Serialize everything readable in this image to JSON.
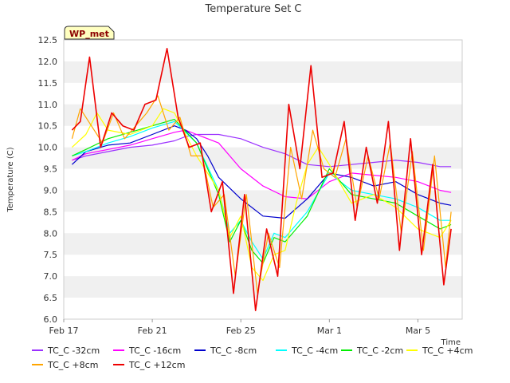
{
  "chart_data": {
    "type": "line",
    "title": "Temperature Set C",
    "xlabel": "Time",
    "ylabel": "Temperature (C)",
    "annotation": "WP_met",
    "ylim": [
      6.0,
      12.5
    ],
    "xlim": [
      "2021-02-17",
      "2021-03-07"
    ],
    "yticks": [
      "6.0",
      "6.5",
      "7.0",
      "7.5",
      "8.0",
      "8.5",
      "9.0",
      "9.5",
      "10.0",
      "10.5",
      "11.0",
      "11.5",
      "12.0",
      "12.5"
    ],
    "xticks": [
      {
        "label": "Feb 17",
        "date": "2021-02-17"
      },
      {
        "label": "Feb 21",
        "date": "2021-02-21"
      },
      {
        "label": "Feb 25",
        "date": "2021-02-25"
      },
      {
        "label": "Mar 1",
        "date": "2021-03-01"
      },
      {
        "label": "Mar 5",
        "date": "2021-03-05"
      }
    ],
    "grid": "horizontal bands",
    "legend_position": "bottom",
    "series": [
      {
        "name": "TC_C -32cm",
        "color": "#9b30ff",
        "x": [
          "2021-02-17 09:00",
          "2021-02-18 00:00",
          "2021-02-19 00:00",
          "2021-02-20 00:00",
          "2021-02-21 00:00",
          "2021-02-22 00:00",
          "2021-02-22 12:00",
          "2021-02-23 00:00",
          "2021-02-24 00:00",
          "2021-02-25 00:00",
          "2021-02-26 00:00",
          "2021-02-27 00:00",
          "2021-02-28 00:00",
          "2021-03-01 00:00",
          "2021-03-02 00:00",
          "2021-03-03 00:00",
          "2021-03-04 00:00",
          "2021-03-05 00:00",
          "2021-03-06 00:00",
          "2021-03-06 12:00"
        ],
        "y": [
          9.7,
          9.8,
          9.9,
          10.0,
          10.05,
          10.15,
          10.25,
          10.3,
          10.3,
          10.2,
          10.0,
          9.85,
          9.6,
          9.55,
          9.6,
          9.65,
          9.7,
          9.65,
          9.55,
          9.55
        ]
      },
      {
        "name": "TC_C -16cm",
        "color": "#ff00ff",
        "x": [
          "2021-02-17 09:00",
          "2021-02-18 00:00",
          "2021-02-19 00:00",
          "2021-02-20 00:00",
          "2021-02-21 00:00",
          "2021-02-22 00:00",
          "2021-02-22 12:00",
          "2021-02-23 00:00",
          "2021-02-24 00:00",
          "2021-02-25 00:00",
          "2021-02-26 00:00",
          "2021-02-27 00:00",
          "2021-02-28 00:00",
          "2021-03-01 00:00",
          "2021-03-02 00:00",
          "2021-03-03 00:00",
          "2021-03-04 00:00",
          "2021-03-05 00:00",
          "2021-03-06 00:00",
          "2021-03-06 12:00"
        ],
        "y": [
          9.7,
          9.85,
          9.95,
          10.05,
          10.2,
          10.35,
          10.4,
          10.3,
          10.1,
          9.5,
          9.1,
          8.85,
          8.8,
          9.2,
          9.4,
          9.35,
          9.3,
          9.2,
          9.0,
          8.95
        ]
      },
      {
        "name": "TC_C -8cm",
        "color": "#0000cd",
        "x": [
          "2021-02-17 09:00",
          "2021-02-18 00:00",
          "2021-02-19 00:00",
          "2021-02-20 00:00",
          "2021-02-21 00:00",
          "2021-02-22 00:00",
          "2021-02-22 12:00",
          "2021-02-23 00:00",
          "2021-02-23 12:00",
          "2021-02-24 00:00",
          "2021-02-25 00:00",
          "2021-02-26 00:00",
          "2021-02-27 00:00",
          "2021-02-28 00:00",
          "2021-03-01 00:00",
          "2021-03-02 00:00",
          "2021-03-03 00:00",
          "2021-03-04 00:00",
          "2021-03-05 00:00",
          "2021-03-06 00:00",
          "2021-03-06 12:00"
        ],
        "y": [
          9.6,
          9.9,
          10.05,
          10.1,
          10.3,
          10.5,
          10.4,
          10.2,
          9.8,
          9.3,
          8.8,
          8.4,
          8.35,
          8.8,
          9.4,
          9.3,
          9.1,
          9.2,
          8.9,
          8.7,
          8.65
        ]
      },
      {
        "name": "TC_C -4cm",
        "color": "#00ffff",
        "x": [
          "2021-02-17 09:00",
          "2021-02-18 00:00",
          "2021-02-19 00:00",
          "2021-02-20 00:00",
          "2021-02-21 00:00",
          "2021-02-22 00:00",
          "2021-02-23 00:00",
          "2021-02-24 00:00",
          "2021-02-24 12:00",
          "2021-02-25 00:00",
          "2021-02-25 12:00",
          "2021-02-26 00:00",
          "2021-02-26 12:00",
          "2021-02-27 00:00",
          "2021-02-28 00:00",
          "2021-03-01 00:00",
          "2021-03-02 00:00",
          "2021-03-03 00:00",
          "2021-03-04 00:00",
          "2021-03-05 00:00",
          "2021-03-06 00:00",
          "2021-03-06 12:00"
        ],
        "y": [
          9.8,
          9.9,
          10.1,
          10.25,
          10.45,
          10.6,
          10.1,
          9.0,
          8.0,
          8.3,
          7.8,
          7.4,
          8.0,
          7.9,
          8.5,
          9.4,
          9.0,
          8.9,
          8.8,
          8.6,
          8.3,
          8.3
        ]
      },
      {
        "name": "TC_C -2cm",
        "color": "#00ee00",
        "x": [
          "2021-02-17 09:00",
          "2021-02-18 00:00",
          "2021-02-19 00:00",
          "2021-02-20 00:00",
          "2021-02-21 00:00",
          "2021-02-22 00:00",
          "2021-02-23 00:00",
          "2021-02-24 00:00",
          "2021-02-24 12:00",
          "2021-02-25 00:00",
          "2021-02-25 12:00",
          "2021-02-26 00:00",
          "2021-02-26 12:00",
          "2021-02-27 00:00",
          "2021-02-28 00:00",
          "2021-03-01 00:00",
          "2021-03-02 00:00",
          "2021-03-03 00:00",
          "2021-03-04 00:00",
          "2021-03-05 00:00",
          "2021-03-06 00:00",
          "2021-03-06 12:00"
        ],
        "y": [
          9.8,
          9.95,
          10.2,
          10.35,
          10.5,
          10.65,
          10.1,
          8.9,
          7.8,
          8.3,
          7.6,
          7.3,
          7.9,
          7.8,
          8.4,
          9.5,
          8.9,
          8.8,
          8.7,
          8.4,
          8.1,
          8.2
        ]
      },
      {
        "name": "TC_C +4cm",
        "color": "#ffff00",
        "x": [
          "2021-02-17 09:00",
          "2021-02-18 00:00",
          "2021-02-18 12:00",
          "2021-02-19 00:00",
          "2021-02-20 00:00",
          "2021-02-21 00:00",
          "2021-02-21 12:00",
          "2021-02-22 00:00",
          "2021-02-22 12:00",
          "2021-02-23 00:00",
          "2021-02-24 00:00",
          "2021-02-24 12:00",
          "2021-02-25 00:00",
          "2021-02-25 12:00",
          "2021-02-26 00:00",
          "2021-02-26 12:00",
          "2021-02-27 00:00",
          "2021-02-27 12:00",
          "2021-02-28 00:00",
          "2021-02-28 12:00",
          "2021-03-01 00:00",
          "2021-03-02 00:00",
          "2021-03-03 00:00",
          "2021-03-04 00:00",
          "2021-03-05 00:00",
          "2021-03-06 00:00",
          "2021-03-06 12:00"
        ],
        "y": [
          10.0,
          10.3,
          10.8,
          10.4,
          10.3,
          10.5,
          10.9,
          10.8,
          10.3,
          9.8,
          9.0,
          7.9,
          8.4,
          7.2,
          6.9,
          7.5,
          7.6,
          8.7,
          9.6,
          10.0,
          9.6,
          8.7,
          8.9,
          8.6,
          8.1,
          7.9,
          8.3
        ]
      },
      {
        "name": "TC_C +8cm",
        "color": "#ffa500",
        "x": [
          "2021-02-17 09:00",
          "2021-02-17 18:00",
          "2021-02-18 06:00",
          "2021-02-18 18:00",
          "2021-02-19 06:00",
          "2021-02-19 18:00",
          "2021-02-20 06:00",
          "2021-02-20 18:00",
          "2021-02-21 06:00",
          "2021-02-21 18:00",
          "2021-02-22 06:00",
          "2021-02-22 18:00",
          "2021-02-23 06:00",
          "2021-02-23 18:00",
          "2021-02-24 06:00",
          "2021-02-24 18:00",
          "2021-02-25 06:00",
          "2021-02-25 18:00",
          "2021-02-26 06:00",
          "2021-02-26 18:00",
          "2021-02-27 06:00",
          "2021-02-27 18:00",
          "2021-02-28 06:00",
          "2021-02-28 18:00",
          "2021-03-01 06:00",
          "2021-03-01 18:00",
          "2021-03-02 06:00",
          "2021-03-02 18:00",
          "2021-03-03 06:00",
          "2021-03-03 18:00",
          "2021-03-04 06:00",
          "2021-03-04 18:00",
          "2021-03-05 06:00",
          "2021-03-05 18:00",
          "2021-03-06 06:00",
          "2021-03-06 12:00"
        ],
        "y": [
          10.2,
          10.9,
          10.5,
          10.1,
          10.8,
          10.2,
          10.5,
          10.8,
          11.2,
          10.4,
          10.7,
          9.8,
          9.8,
          8.6,
          8.9,
          7.0,
          8.9,
          6.6,
          8.0,
          7.2,
          10.0,
          8.8,
          10.4,
          9.5,
          9.3,
          10.2,
          8.6,
          9.8,
          8.8,
          10.1,
          8.0,
          9.9,
          7.6,
          9.8,
          7.2,
          8.5
        ]
      },
      {
        "name": "TC_C +12cm",
        "color": "#ee0000",
        "x": [
          "2021-02-17 09:00",
          "2021-02-17 18:00",
          "2021-02-18 04:00",
          "2021-02-18 16:00",
          "2021-02-19 04:00",
          "2021-02-19 16:00",
          "2021-02-20 04:00",
          "2021-02-20 16:00",
          "2021-02-21 04:00",
          "2021-02-21 16:00",
          "2021-02-22 04:00",
          "2021-02-22 16:00",
          "2021-02-23 04:00",
          "2021-02-23 16:00",
          "2021-02-24 04:00",
          "2021-02-24 16:00",
          "2021-02-25 04:00",
          "2021-02-25 16:00",
          "2021-02-26 04:00",
          "2021-02-26 16:00",
          "2021-02-27 04:00",
          "2021-02-27 16:00",
          "2021-02-28 04:00",
          "2021-02-28 16:00",
          "2021-03-01 04:00",
          "2021-03-01 16:00",
          "2021-03-02 04:00",
          "2021-03-02 16:00",
          "2021-03-03 04:00",
          "2021-03-03 16:00",
          "2021-03-04 04:00",
          "2021-03-04 16:00",
          "2021-03-05 04:00",
          "2021-03-05 16:00",
          "2021-03-06 04:00",
          "2021-03-06 12:00"
        ],
        "y": [
          10.4,
          10.6,
          12.1,
          10.0,
          10.8,
          10.5,
          10.4,
          11.0,
          11.1,
          12.3,
          10.7,
          10.0,
          10.1,
          8.5,
          9.2,
          6.6,
          8.9,
          6.2,
          8.1,
          7.0,
          11.0,
          9.5,
          11.9,
          9.3,
          9.4,
          10.6,
          8.3,
          10.0,
          8.7,
          10.6,
          7.6,
          10.2,
          7.5,
          9.6,
          6.8,
          8.1
        ]
      }
    ]
  }
}
